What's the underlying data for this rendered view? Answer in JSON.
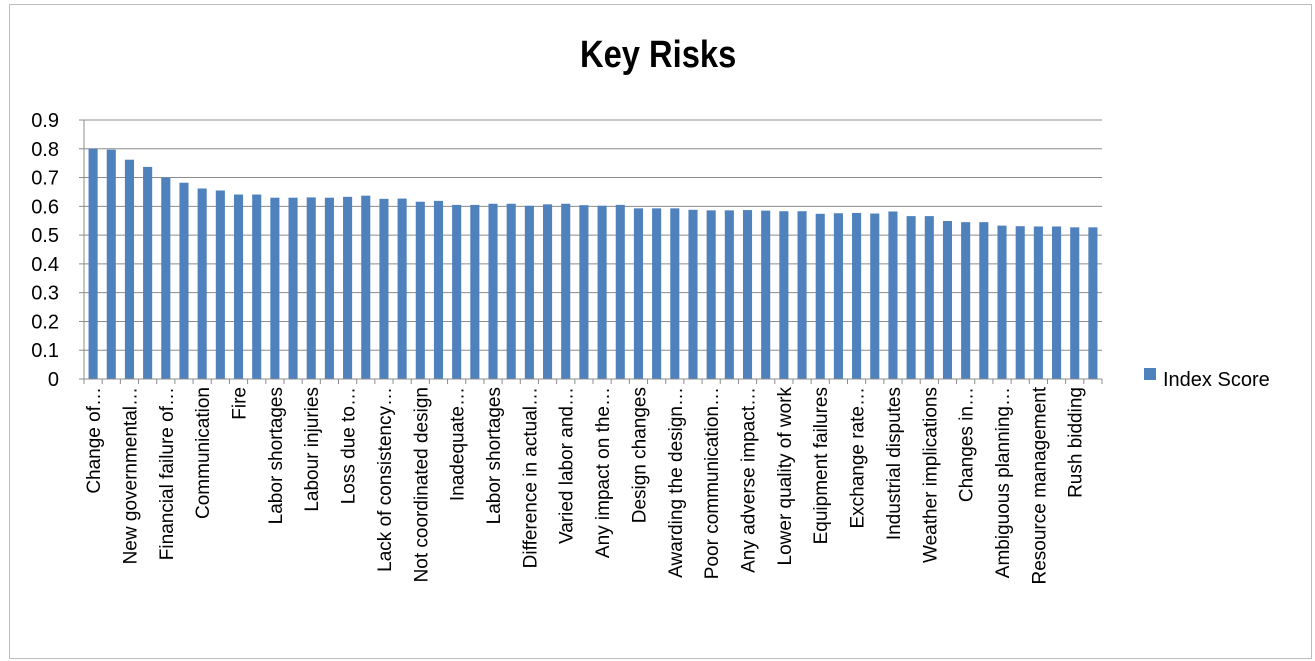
{
  "chart_data": {
    "type": "bar",
    "title": "Key Risks",
    "xlabel": "",
    "ylabel": "",
    "ylim": [
      0,
      0.9
    ],
    "yticks": [
      "0",
      "0.1",
      "0.2",
      "0.3",
      "0.4",
      "0.5",
      "0.6",
      "0.7",
      "0.8",
      "0.9"
    ],
    "grid": true,
    "legend_position": "right",
    "bar_color": "#4f81bd",
    "categories": [
      "Change of…",
      "",
      "New governmental…",
      "",
      "Financial failure of…",
      "",
      "Communication",
      "",
      "Fire",
      "",
      "Labor shortages",
      "",
      "Labour injuries",
      "",
      "Loss due to…",
      "",
      "Lack of consistency…",
      "",
      "Not coordinated design",
      "",
      "Inadequate…",
      "",
      "Labor shortages",
      "",
      "Difference in actual…",
      "",
      "Varied labor and…",
      "",
      "Any impact on the…",
      "",
      "Design changes",
      "",
      "Awarding the design…",
      "",
      "Poor communication…",
      "",
      "Any adverse impact…",
      "",
      "Lower quality of work",
      "",
      "Equipment failures",
      "",
      "Exchange rate…",
      "",
      "Industrial disputes",
      "",
      "Weather implications",
      "",
      "Changes in…",
      "",
      "Ambiguous planning…",
      "",
      "Resource management",
      "",
      "Rush bidding",
      ""
    ],
    "series": [
      {
        "name": "Index Score",
        "values": [
          0.8,
          0.797,
          0.762,
          0.737,
          0.7,
          0.682,
          0.662,
          0.655,
          0.641,
          0.641,
          0.63,
          0.63,
          0.631,
          0.63,
          0.633,
          0.637,
          0.626,
          0.627,
          0.616,
          0.619,
          0.605,
          0.605,
          0.609,
          0.609,
          0.602,
          0.607,
          0.609,
          0.604,
          0.602,
          0.605,
          0.593,
          0.593,
          0.593,
          0.588,
          0.586,
          0.586,
          0.587,
          0.585,
          0.583,
          0.583,
          0.574,
          0.576,
          0.577,
          0.575,
          0.582,
          0.566,
          0.566,
          0.549,
          0.545,
          0.545,
          0.533,
          0.531,
          0.53,
          0.53,
          0.527,
          0.527
        ]
      }
    ]
  }
}
